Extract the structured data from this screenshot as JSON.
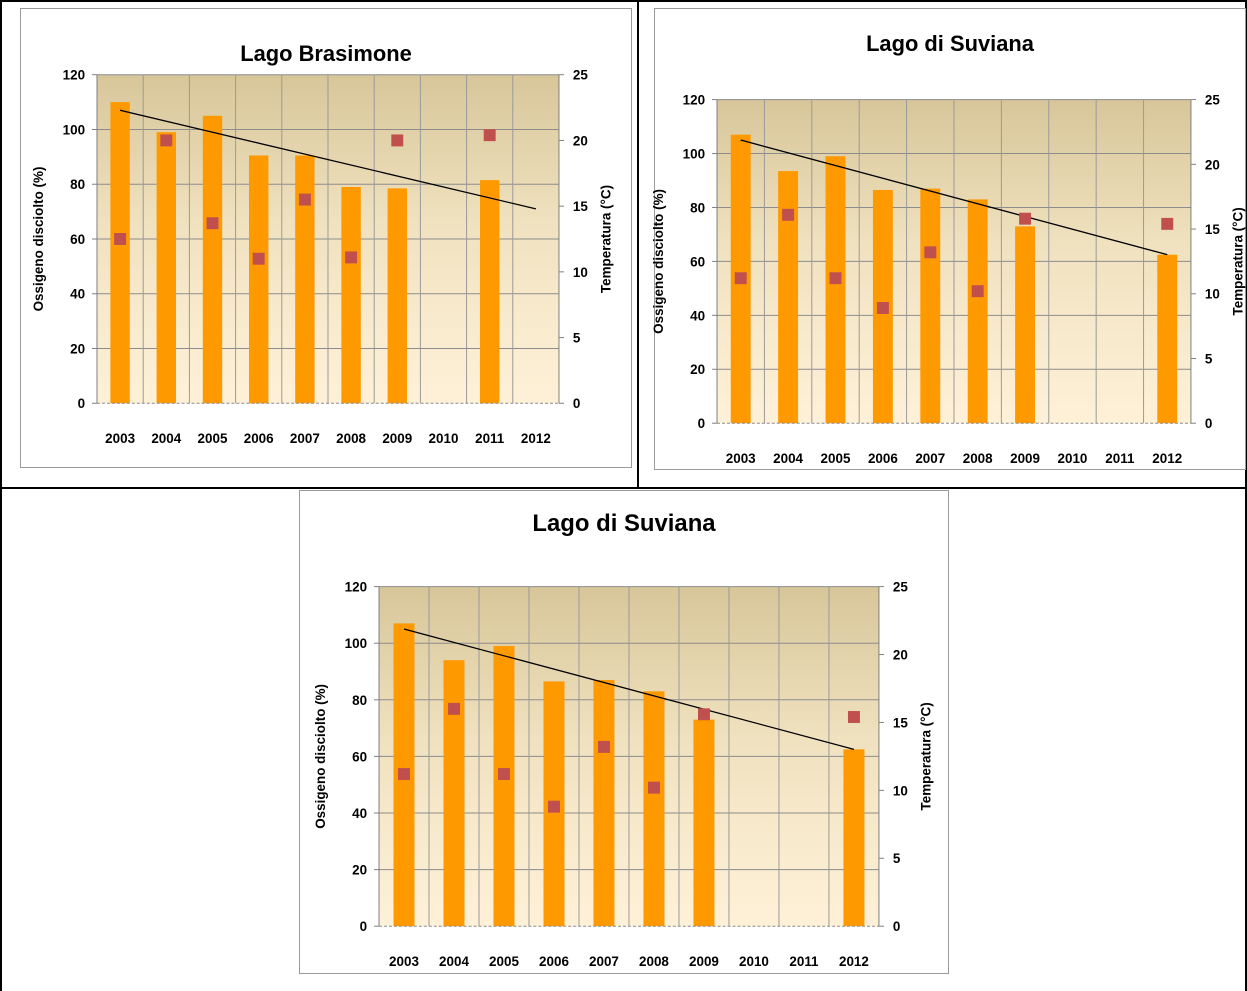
{
  "chart_data": [
    {
      "type": "bar",
      "title": "Lago Brasimone",
      "categories": [
        "2003",
        "2004",
        "2005",
        "2006",
        "2007",
        "2008",
        "2009",
        "2010",
        "2011",
        "2012"
      ],
      "ylabel": "Ossigeno disciolto (%)",
      "y2label": "Temperatura (°C)",
      "ylim": [
        0,
        120
      ],
      "y2lim": [
        0,
        25
      ],
      "yticks": [
        "0",
        "20",
        "40",
        "60",
        "80",
        "100",
        "120"
      ],
      "y2ticks": [
        "0",
        "5",
        "10",
        "15",
        "20",
        "25"
      ],
      "bar_color": "#ff9900",
      "marker_color": "#c0504d",
      "trend_color": "#000000",
      "grid": true,
      "series": [
        {
          "type": "bar",
          "axis": "left",
          "values": [
            110,
            99,
            105,
            90.5,
            90.5,
            79,
            78.5,
            null,
            81.5,
            null
          ]
        },
        {
          "type": "scatter",
          "axis": "right",
          "values": [
            12.5,
            20,
            13.7,
            11,
            15.5,
            11.1,
            20,
            null,
            20.4,
            null
          ]
        },
        {
          "type": "trendline",
          "axis": "left",
          "from": {
            "x": "2003",
            "y": 107
          },
          "to": {
            "x": "2012",
            "y": 71
          }
        }
      ]
    },
    {
      "type": "bar",
      "title": "Lago di Suviana",
      "categories": [
        "2003",
        "2004",
        "2005",
        "2006",
        "2007",
        "2008",
        "2009",
        "2010",
        "2011",
        "2012"
      ],
      "ylabel": "Ossigeno disciolto (%)",
      "y2label": "Temperatura (°C)",
      "ylim": [
        0,
        120
      ],
      "y2lim": [
        0,
        25
      ],
      "yticks": [
        "0",
        "20",
        "40",
        "60",
        "80",
        "100",
        "120"
      ],
      "y2ticks": [
        "0",
        "5",
        "10",
        "15",
        "20",
        "25"
      ],
      "bar_color": "#ff9900",
      "marker_color": "#c0504d",
      "trend_color": "#000000",
      "grid": true,
      "series": [
        {
          "type": "bar",
          "axis": "left",
          "values": [
            107,
            93.5,
            99,
            86.5,
            87,
            83,
            73,
            null,
            null,
            62.5
          ]
        },
        {
          "type": "scatter",
          "axis": "right",
          "values": [
            11.2,
            16.1,
            11.2,
            8.9,
            13.2,
            10.2,
            15.8,
            null,
            null,
            15.4
          ]
        },
        {
          "type": "trendline",
          "axis": "left",
          "from": {
            "x": "2003",
            "y": 105
          },
          "to": {
            "x": "2012",
            "y": 62.5
          }
        }
      ]
    },
    {
      "type": "bar",
      "title": "Lago di Suviana",
      "categories": [
        "2003",
        "2004",
        "2005",
        "2006",
        "2007",
        "2008",
        "2009",
        "2010",
        "2011",
        "2012"
      ],
      "ylabel": "Ossigeno disciolto (%)",
      "y2label": "Temperatura (°C)",
      "ylim": [
        0,
        120
      ],
      "y2lim": [
        0,
        25
      ],
      "yticks": [
        "0",
        "20",
        "40",
        "60",
        "80",
        "100",
        "120"
      ],
      "y2ticks": [
        "0",
        "5",
        "10",
        "15",
        "20",
        "25"
      ],
      "bar_color": "#ff9900",
      "marker_color": "#c0504d",
      "trend_color": "#000000",
      "grid": true,
      "series": [
        {
          "type": "bar",
          "axis": "left",
          "values": [
            107,
            94,
            99,
            86.5,
            87,
            83,
            73,
            null,
            null,
            62.5
          ]
        },
        {
          "type": "scatter",
          "axis": "right",
          "values": [
            11.2,
            16,
            11.2,
            8.8,
            13.2,
            10.2,
            15.6,
            null,
            null,
            15.4
          ]
        },
        {
          "type": "trendline",
          "axis": "left",
          "from": {
            "x": "2003",
            "y": 105
          },
          "to": {
            "x": "2012",
            "y": 62.5
          }
        }
      ]
    }
  ]
}
